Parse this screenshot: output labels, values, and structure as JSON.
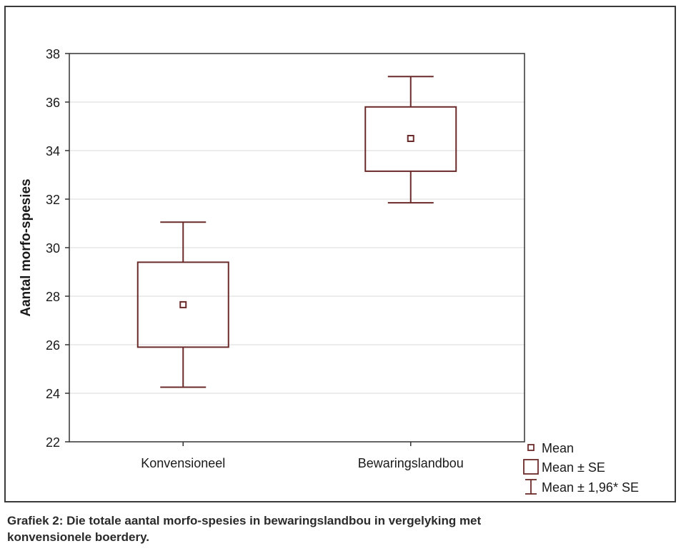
{
  "chart_data": {
    "type": "box",
    "title": "",
    "ylabel": "Aantal morfo-spesies",
    "xlabel": "",
    "ylim": [
      22,
      38
    ],
    "yticks": [
      22,
      24,
      26,
      28,
      30,
      32,
      34,
      36,
      38
    ],
    "grid": true,
    "categories": [
      "Konvensioneel",
      "Bewaringslandbou"
    ],
    "series": [
      {
        "category": "Konvensioneel",
        "mean": 27.65,
        "se_low": 25.9,
        "se_high": 29.4,
        "ci_low": 24.25,
        "ci_high": 31.05
      },
      {
        "category": "Bewaringslandbou",
        "mean": 34.5,
        "se_low": 33.15,
        "se_high": 35.8,
        "ci_low": 31.85,
        "ci_high": 37.05
      }
    ],
    "legend": {
      "position": "bottom-right",
      "items": [
        {
          "symbol": "mean",
          "label": "Mean"
        },
        {
          "symbol": "box",
          "label": "Mean ± SE"
        },
        {
          "symbol": "whisker",
          "label": "Mean ± 1,96* SE"
        }
      ]
    },
    "color": "#6b2a2a"
  },
  "caption": {
    "line1": "Grafiek 2: Die totale aantal morfo-spesies in bewaringslandbou in vergelyking met",
    "line2": "konvensionele boerdery."
  }
}
